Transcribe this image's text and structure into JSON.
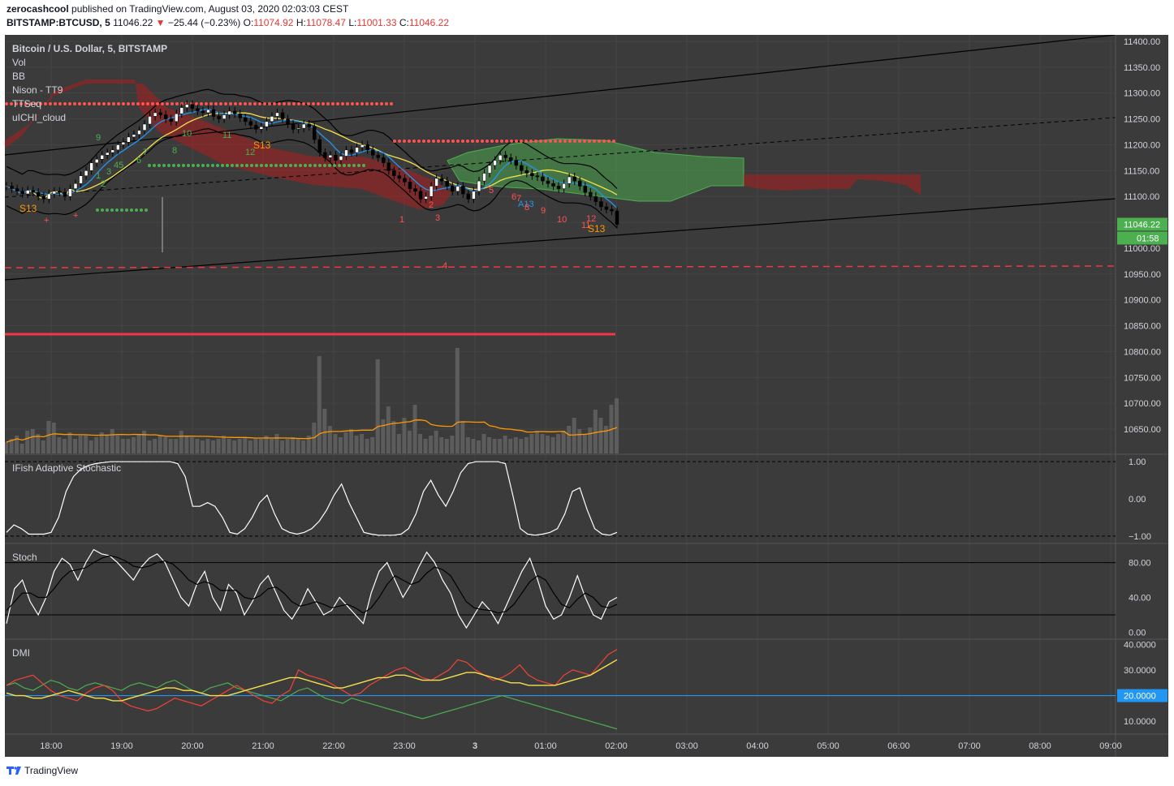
{
  "header": {
    "author": "zerocashcool",
    "published_text": "published on TradingView.com, August 03, 2020 02:03:03 CEST",
    "symbol": "BITSTAMP:BTCUSD, 5",
    "last": "11046.22",
    "change_arrow": "▼",
    "change": "−25.44 (−0.23%)",
    "o_label": "O:",
    "o": "11074.92",
    "h_label": "H:",
    "h": "11078.47",
    "l_label": "L:",
    "l": "11001.33",
    "c_label": "C:",
    "c": "11046.22"
  },
  "footer": {
    "brand": "TradingView",
    "logo_icon": "tradingview-logo-icon"
  },
  "colors": {
    "background": "#3b3b3b",
    "grid": "#444444",
    "axis_text": "#d1d4dc",
    "up_candle": "#ffffff",
    "down_candle": "#000000",
    "bb_mid": "#f5e14b",
    "ema": "#2196f3",
    "resistance_dots": "#ff5252",
    "support_dots": "#4caf50",
    "cloud_bull": "#4caf50",
    "cloud_bear": "#b71c1c",
    "plus_di": "#4caf50",
    "minus_di": "#f44336",
    "adx": "#f5e14b",
    "dmi_level": "#2196f3",
    "volume_ma": "#ff9800",
    "price_label": "#4caf50",
    "red_line": "#f23645"
  },
  "chart_data": [
    {
      "type": "candlestick",
      "title": "Bitcoin / U.S. Dollar, 5, BITSTAMP",
      "indicators": [
        "Vol",
        "BB",
        "Nison - TT9",
        "TTSeq",
        "uICHI_cloud"
      ],
      "price_ticks": [
        "11400.00",
        "11350.00",
        "11300.00",
        "11250.00",
        "11200.00",
        "11150.00",
        "11100.00",
        "11050.00",
        "11000.00",
        "10950.00",
        "10900.00",
        "10850.00",
        "10800.00",
        "10750.00",
        "10700.00",
        "10650.00"
      ],
      "ylim": [
        10610,
        11410
      ],
      "x_ticks": [
        "18:00",
        "19:00",
        "20:00",
        "21:00",
        "22:00",
        "23:00",
        "3",
        "01:00",
        "02:00",
        "03:00",
        "04:00",
        "05:00",
        "06:00",
        "07:00",
        "08:00",
        "09:00"
      ],
      "last_price_label": "11046.22",
      "countdown_label": "01:58",
      "candles_close": [
        11120,
        11115,
        11110,
        11105,
        11112,
        11108,
        11100,
        11095,
        11105,
        11110,
        11108,
        11100,
        11115,
        11125,
        11140,
        11150,
        11165,
        11172,
        11180,
        11185,
        11190,
        11200,
        11205,
        11215,
        11220,
        11228,
        11240,
        11255,
        11262,
        11258,
        11250,
        11245,
        11260,
        11272,
        11278,
        11270,
        11265,
        11262,
        11268,
        11255,
        11250,
        11258,
        11265,
        11260,
        11252,
        11245,
        11238,
        11230,
        11235,
        11245,
        11255,
        11262,
        11250,
        11240,
        11230,
        11232,
        11240,
        11235,
        11210,
        11185,
        11175,
        11180,
        11170,
        11178,
        11190,
        11185,
        11195,
        11200,
        11190,
        11180,
        11175,
        11165,
        11150,
        11140,
        11135,
        11128,
        11115,
        11110,
        11095,
        11100,
        11120,
        11135,
        11130,
        11120,
        11110,
        11120,
        11105,
        11095,
        11110,
        11130,
        11145,
        11160,
        11170,
        11180,
        11175,
        11170,
        11160,
        11150,
        11145,
        11140,
        11138,
        11130,
        11125,
        11120,
        11115,
        11125,
        11138,
        11130,
        11120,
        11108,
        11100,
        11090,
        11080,
        11075,
        11072,
        11046
      ]
    },
    {
      "type": "bar",
      "title": "Vol",
      "values": [
        14,
        18,
        22,
        12,
        28,
        30,
        24,
        16,
        40,
        38,
        20,
        18,
        26,
        18,
        22,
        22,
        16,
        20,
        26,
        22,
        30,
        22,
        18,
        18,
        20,
        24,
        28,
        16,
        18,
        22,
        20,
        18,
        18,
        28,
        22,
        20,
        18,
        16,
        18,
        16,
        18,
        22,
        18,
        16,
        18,
        20,
        16,
        18,
        18,
        22,
        18,
        24,
        16,
        18,
        20,
        18,
        16,
        22,
        38,
        120,
        55,
        34,
        24,
        20,
        26,
        30,
        22,
        24,
        18,
        20,
        116,
        42,
        58,
        40,
        24,
        44,
        28,
        60,
        24,
        18,
        22,
        28,
        20,
        18,
        22,
        130,
        40,
        20,
        18,
        16,
        24,
        20,
        18,
        18,
        22,
        18,
        20,
        18,
        20,
        24,
        28,
        24,
        22,
        20,
        24,
        28,
        34,
        44,
        30,
        24,
        32,
        54,
        44,
        34,
        60,
        68
      ]
    },
    {
      "type": "line",
      "title": "IFish Adaptive Stochastic",
      "y_ticks": [
        "1.00",
        "0.00",
        "−1.00"
      ],
      "ylim": [
        -1.2,
        1.2
      ],
      "values": [
        -0.9,
        -0.7,
        -0.8,
        -0.95,
        -0.95,
        -0.95,
        -0.9,
        -0.5,
        0.2,
        0.6,
        0.8,
        0.9,
        0.95,
        0.98,
        1,
        1,
        1,
        1,
        1,
        1,
        1,
        1,
        1,
        0.95,
        0.6,
        -0.2,
        -0.2,
        -0.1,
        -0.2,
        -0.5,
        -0.9,
        -0.95,
        -0.8,
        -0.5,
        -0.1,
        0.1,
        -0.4,
        -0.8,
        -0.9,
        -0.95,
        -0.9,
        -0.8,
        -0.6,
        -0.3,
        0.1,
        0.4,
        -0.1,
        -0.5,
        -0.9,
        -0.95,
        -0.98,
        -0.98,
        -0.98,
        -0.95,
        -0.8,
        -0.4,
        0.2,
        0.5,
        0.1,
        -0.2,
        0.2,
        0.7,
        0.95,
        1,
        1,
        1,
        1,
        0.95,
        0.1,
        -0.8,
        -0.95,
        -0.98,
        -0.95,
        -0.9,
        -0.8,
        -0.4,
        0.2,
        0.3,
        -0.3,
        -0.8,
        -0.95,
        -0.98,
        -0.9
      ]
    },
    {
      "type": "line",
      "title": "Stoch",
      "y_ticks": [
        "80.00",
        "40.00",
        "0.00"
      ],
      "ylim": [
        -8,
        102
      ],
      "levels": [
        80,
        20
      ],
      "series": [
        {
          "values": [
            10,
            50,
            60,
            35,
            20,
            40,
            70,
            85,
            78,
            60,
            80,
            95,
            90,
            88,
            80,
            70,
            60,
            75,
            85,
            90,
            80,
            60,
            40,
            30,
            55,
            70,
            40,
            25,
            55,
            45,
            20,
            35,
            55,
            65,
            45,
            25,
            15,
            30,
            50,
            35,
            20,
            25,
            40,
            30,
            20,
            10,
            45,
            70,
            80,
            60,
            40,
            55,
            75,
            92,
            80,
            60,
            45,
            20,
            5,
            20,
            35,
            25,
            10,
            30,
            50,
            70,
            85,
            60,
            30,
            15,
            20,
            40,
            65,
            40,
            20,
            15,
            35,
            40
          ]
        },
        {
          "values": [
            25,
            35,
            45,
            45,
            40,
            40,
            50,
            62,
            70,
            72,
            74,
            80,
            85,
            88,
            86,
            82,
            76,
            74,
            76,
            80,
            82,
            78,
            70,
            60,
            55,
            58,
            55,
            48,
            48,
            48,
            40,
            38,
            42,
            50,
            52,
            45,
            35,
            30,
            32,
            35,
            32,
            28,
            30,
            32,
            28,
            22,
            28,
            40,
            55,
            65,
            60,
            55,
            58,
            68,
            75,
            72,
            65,
            50,
            35,
            28,
            26,
            25,
            22,
            24,
            32,
            45,
            58,
            65,
            60,
            45,
            32,
            28,
            38,
            45,
            40,
            30,
            28,
            32
          ]
        }
      ]
    },
    {
      "type": "line",
      "title": "DMI",
      "y_ticks": [
        "40.0000",
        "30.0000",
        "20.0000",
        "10.0000"
      ],
      "ylim": [
        5,
        42
      ],
      "level": 20,
      "level_label": "20.0000",
      "series": [
        {
          "values": [
            24,
            25,
            23,
            22,
            24,
            26,
            25,
            23,
            22,
            24,
            25,
            24,
            23,
            22,
            24,
            25,
            24,
            23,
            25,
            26,
            24,
            22,
            21,
            23,
            24,
            25,
            23,
            22,
            21,
            20,
            19,
            18,
            20,
            22,
            23,
            21,
            19,
            18,
            17,
            19,
            18,
            17,
            16,
            15,
            14,
            13,
            12,
            11,
            12,
            13,
            14,
            15,
            16,
            17,
            18,
            19,
            20,
            19,
            18,
            17,
            16,
            15,
            14,
            13,
            12,
            11,
            10,
            9,
            8,
            7
          ]
        },
        {
          "values": [
            24,
            26,
            27,
            28,
            25,
            22,
            20,
            19,
            18,
            21,
            23,
            24,
            22,
            18,
            16,
            15,
            14,
            15,
            17,
            19,
            18,
            17,
            16,
            18,
            20,
            22,
            24,
            22,
            20,
            18,
            17,
            20,
            22,
            30,
            28,
            27,
            26,
            24,
            22,
            20,
            21,
            24,
            26,
            28,
            30,
            31,
            29,
            27,
            26,
            28,
            30,
            34,
            33,
            30,
            28,
            26,
            27,
            29,
            32,
            28,
            26,
            25,
            24,
            28,
            30,
            29,
            28,
            32,
            36,
            38
          ]
        },
        {
          "values": [
            21,
            20,
            20,
            19,
            19,
            20,
            21,
            22,
            21,
            20,
            19,
            19,
            18,
            18,
            19,
            20,
            21,
            22,
            23,
            23,
            22,
            22,
            21,
            20,
            20,
            20,
            21,
            22,
            23,
            24,
            25,
            26,
            27,
            27,
            26,
            25,
            24,
            23,
            23,
            24,
            25,
            26,
            27,
            27,
            28,
            28,
            27,
            26,
            26,
            26,
            27,
            28,
            29,
            29,
            28,
            27,
            26,
            25,
            25,
            24,
            24,
            24,
            24,
            25,
            26,
            27,
            28,
            30,
            32,
            34
          ]
        }
      ]
    }
  ]
}
